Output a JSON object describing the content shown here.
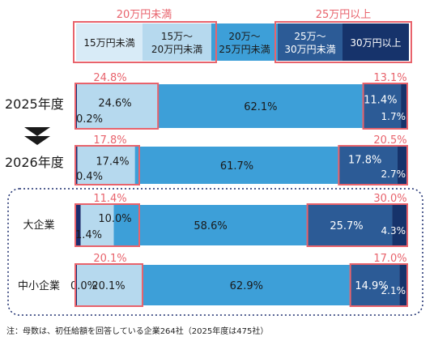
{
  "legend": {
    "group_low_label": "20万円未満",
    "group_high_label": "25万円以上",
    "items": [
      {
        "line1": "15万円未満",
        "line2": ""
      },
      {
        "line1": "15万～",
        "line2": "20万円未満"
      },
      {
        "line1": "20万～",
        "line2": "25万円未満"
      },
      {
        "line1": "25万～",
        "line2": "30万円未満"
      },
      {
        "line1": "30万円以上",
        "line2": ""
      }
    ]
  },
  "colors": {
    "seg0": "#1c2d6e",
    "seg1": "#b6d9ee",
    "seg2": "#3d9fd8",
    "seg3": "#2c5b96",
    "seg4": "#16336b",
    "highlight": "#e8636c",
    "group_text": "#e8636c"
  },
  "chart_data": {
    "type": "bar",
    "orientation": "horizontal",
    "stacked": true,
    "categories": [
      "2025年度",
      "2026年度",
      "大企業",
      "中小企業"
    ],
    "series": [
      {
        "name": "15万円未満",
        "values": [
          0.2,
          0.4,
          1.4,
          0.0
        ]
      },
      {
        "name": "15万～20万円未満",
        "values": [
          24.6,
          17.4,
          10.0,
          20.1
        ]
      },
      {
        "name": "20万～25万円未満",
        "values": [
          62.1,
          61.7,
          58.6,
          62.9
        ]
      },
      {
        "name": "25万～30万円未満",
        "values": [
          11.4,
          17.8,
          25.7,
          14.9
        ]
      },
      {
        "name": "30万円以上",
        "values": [
          1.7,
          2.7,
          4.3,
          2.1
        ]
      }
    ],
    "data_labels": [
      [
        "0.2%",
        "24.6%",
        "62.1%",
        "11.4%",
        "1.7%"
      ],
      [
        "0.4%",
        "17.4%",
        "61.7%",
        "17.8%",
        "2.7%"
      ],
      [
        "1.4%",
        "10.0%",
        "58.6%",
        "25.7%",
        "4.3%"
      ],
      [
        "0.0%",
        "20.1%",
        "62.9%",
        "14.9%",
        "2.1%"
      ]
    ],
    "group_totals_low": [
      "24.8%",
      "17.8%",
      "11.4%",
      "20.1%"
    ],
    "group_totals_high": [
      "13.1%",
      "20.5%",
      "30.0%",
      "17.0%"
    ],
    "xlim": [
      0,
      100
    ]
  },
  "footnote": "注：母数は、初任給額を回答している企業264社（2025年度は475社）"
}
